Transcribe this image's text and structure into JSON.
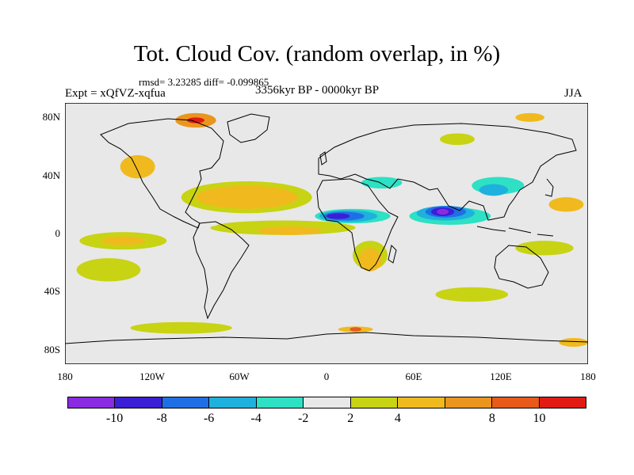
{
  "title": "Tot. Cloud Cov. (random overlap, in %)",
  "stats": "rmsd= 3.23285 diff= -0.099865",
  "expt": "Expt = xQfVZ-xqfua",
  "period": "3356kyr BP - 0000kyr BP",
  "season": "JJA",
  "map": {
    "lon_range": [
      -180,
      180
    ],
    "lat_range": [
      -90,
      90
    ],
    "lon_ticks": [
      "180",
      "120W",
      "60W",
      "0",
      "60E",
      "120E",
      "180"
    ],
    "lat_ticks": [
      "80N",
      "40N",
      "0",
      "40S",
      "80S"
    ],
    "background_color": "#e8e8e8",
    "coastline_color": "#000000"
  },
  "colorbar": {
    "colors": [
      "#8a2be2",
      "#3b1fd6",
      "#1e6fe6",
      "#1eb1dd",
      "#2ee0c4",
      "#e8e8e8",
      "#c8d313",
      "#f0ba1e",
      "#e9951e",
      "#e85a1a",
      "#e31a14"
    ],
    "labels": [
      "-10",
      "-8",
      "-6",
      "-4",
      "-2",
      "2",
      "4",
      "8",
      "10"
    ]
  },
  "anomaly_regions": [
    {
      "cls": 5,
      "lon": 85,
      "lat": 12,
      "rx": 36,
      "ry": 8
    },
    {
      "cls": 4,
      "lon": 85,
      "lat": 12,
      "rx": 28,
      "ry": 6
    },
    {
      "cls": 3,
      "lon": 82,
      "lat": 14,
      "rx": 20,
      "ry": 5
    },
    {
      "cls": 2,
      "lon": 82,
      "lat": 15,
      "rx": 14,
      "ry": 4
    },
    {
      "cls": 1,
      "lon": 80,
      "lat": 15,
      "rx": 8,
      "ry": 3
    },
    {
      "cls": 0,
      "lon": 80,
      "lat": 15,
      "rx": 4,
      "ry": 2
    },
    {
      "cls": 5,
      "lon": 20,
      "lat": 12,
      "rx": 32,
      "ry": 6
    },
    {
      "cls": 4,
      "lon": 18,
      "lat": 12,
      "rx": 26,
      "ry": 5
    },
    {
      "cls": 3,
      "lon": 15,
      "lat": 12,
      "rx": 20,
      "ry": 4
    },
    {
      "cls": 2,
      "lon": 12,
      "lat": 12,
      "rx": 14,
      "ry": 3
    },
    {
      "cls": 1,
      "lon": 8,
      "lat": 12,
      "rx": 8,
      "ry": 2
    },
    {
      "cls": 4,
      "lon": 118,
      "lat": 33,
      "rx": 18,
      "ry": 6
    },
    {
      "cls": 3,
      "lon": 115,
      "lat": 30,
      "rx": 10,
      "ry": 4
    },
    {
      "cls": 4,
      "lon": 38,
      "lat": 35,
      "rx": 14,
      "ry": 4
    },
    {
      "cls": 6,
      "lon": -55,
      "lat": 25,
      "rx": 45,
      "ry": 11
    },
    {
      "cls": 7,
      "lon": -55,
      "lat": 25,
      "rx": 35,
      "ry": 8
    },
    {
      "cls": 7,
      "lon": -130,
      "lat": 46,
      "rx": 12,
      "ry": 8
    },
    {
      "cls": 6,
      "lon": -30,
      "lat": 4,
      "rx": 50,
      "ry": 5
    },
    {
      "cls": 7,
      "lon": -25,
      "lat": 2,
      "rx": 22,
      "ry": 3
    },
    {
      "cls": 6,
      "lon": -140,
      "lat": -5,
      "rx": 30,
      "ry": 6
    },
    {
      "cls": 7,
      "lon": -140,
      "lat": -5,
      "rx": 15,
      "ry": 3
    },
    {
      "cls": 6,
      "lon": -150,
      "lat": -25,
      "rx": 22,
      "ry": 8
    },
    {
      "cls": 6,
      "lon": 30,
      "lat": -15,
      "rx": 12,
      "ry": 10
    },
    {
      "cls": 7,
      "lon": 30,
      "lat": -18,
      "rx": 8,
      "ry": 8
    },
    {
      "cls": 5,
      "lon": -90,
      "lat": 7,
      "rx": 16,
      "ry": 3
    },
    {
      "cls": 5,
      "lon": -162,
      "lat": 18,
      "rx": 14,
      "ry": 4
    },
    {
      "cls": 6,
      "lon": 150,
      "lat": -10,
      "rx": 20,
      "ry": 5
    },
    {
      "cls": 7,
      "lon": 165,
      "lat": 20,
      "rx": 12,
      "ry": 5
    },
    {
      "cls": 5,
      "lon": 155,
      "lat": 5,
      "rx": 18,
      "ry": 4
    },
    {
      "cls": 6,
      "lon": 100,
      "lat": -42,
      "rx": 25,
      "ry": 5
    },
    {
      "cls": 5,
      "lon": -20,
      "lat": -42,
      "rx": 25,
      "ry": 5
    },
    {
      "cls": 6,
      "lon": -100,
      "lat": -65,
      "rx": 35,
      "ry": 4
    },
    {
      "cls": 5,
      "lon": 20,
      "lat": -65,
      "rx": 35,
      "ry": 4
    },
    {
      "cls": 7,
      "lon": 20,
      "lat": -66,
      "rx": 12,
      "ry": 2
    },
    {
      "cls": 9,
      "lon": 20,
      "lat": -66,
      "rx": 4,
      "ry": 1.5
    },
    {
      "cls": 7,
      "lon": 170,
      "lat": -75,
      "rx": 10,
      "ry": 3
    },
    {
      "cls": 8,
      "lon": -90,
      "lat": 78,
      "rx": 14,
      "ry": 5
    },
    {
      "cls": 10,
      "lon": -90,
      "lat": 78,
      "rx": 6,
      "ry": 2
    },
    {
      "cls": 5,
      "lon": -40,
      "lat": 82,
      "rx": 10,
      "ry": 3
    },
    {
      "cls": 5,
      "lon": 50,
      "lat": 78,
      "rx": 20,
      "ry": 4
    },
    {
      "cls": 6,
      "lon": 90,
      "lat": 65,
      "rx": 12,
      "ry": 4
    },
    {
      "cls": 7,
      "lon": 140,
      "lat": 80,
      "rx": 10,
      "ry": 3
    }
  ]
}
